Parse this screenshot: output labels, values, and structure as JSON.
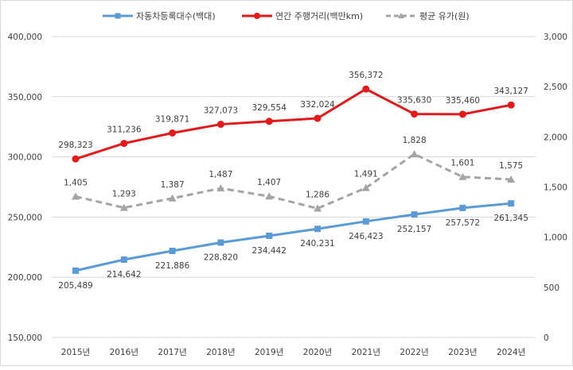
{
  "chart_data": {
    "type": "line",
    "categories": [
      "2015년",
      "2016년",
      "2017년",
      "2018년",
      "2019년",
      "2020년",
      "2021년",
      "2022년",
      "2023년",
      "2024년"
    ],
    "left_axis": {
      "range": [
        150000,
        400000
      ],
      "ticks": [
        "150,000",
        "200,000",
        "250,000",
        "300,000",
        "350,000",
        "400,000"
      ]
    },
    "right_axis": {
      "range": [
        0,
        3000
      ],
      "ticks": [
        "0",
        "500",
        "1,000",
        "1,500",
        "2,000",
        "2,500",
        "3,000"
      ]
    },
    "grid": true,
    "legend_position": "top",
    "series": [
      {
        "name": "자동차등록대수(백대)",
        "axis": "left",
        "color": "#5b9bd5",
        "marker": "square",
        "dash": false,
        "values": [
          205489,
          214642,
          221886,
          228820,
          234442,
          240231,
          246423,
          252157,
          257572,
          261345
        ],
        "labels": [
          "205,489",
          "214,642",
          "221,886",
          "228,820",
          "234,442",
          "240,231",
          "246,423",
          "252,157",
          "257,572",
          "261,345"
        ],
        "label_pos": "below"
      },
      {
        "name": "연간 주행거리(백만km)",
        "axis": "left",
        "color": "#e31a1c",
        "marker": "circle",
        "dash": false,
        "values": [
          298323,
          311236,
          319871,
          327073,
          329554,
          332024,
          356372,
          335630,
          335460,
          343127
        ],
        "labels": [
          "298,323",
          "311,236",
          "319,871",
          "327,073",
          "329,554",
          "332,024",
          "356,372",
          "335,630",
          "335,460",
          "343,127"
        ],
        "label_pos": "above"
      },
      {
        "name": "평균 유가(원)",
        "axis": "right",
        "color": "#a5a5a5",
        "marker": "triangle",
        "dash": true,
        "values": [
          1405,
          1293,
          1387,
          1487,
          1407,
          1286,
          1491,
          1828,
          1601,
          1575
        ],
        "labels": [
          "1,405",
          "1,293",
          "1,387",
          "1,487",
          "1,407",
          "1,286",
          "1,491",
          "1,828",
          "1,601",
          "1,575"
        ],
        "label_pos": "above"
      }
    ]
  }
}
